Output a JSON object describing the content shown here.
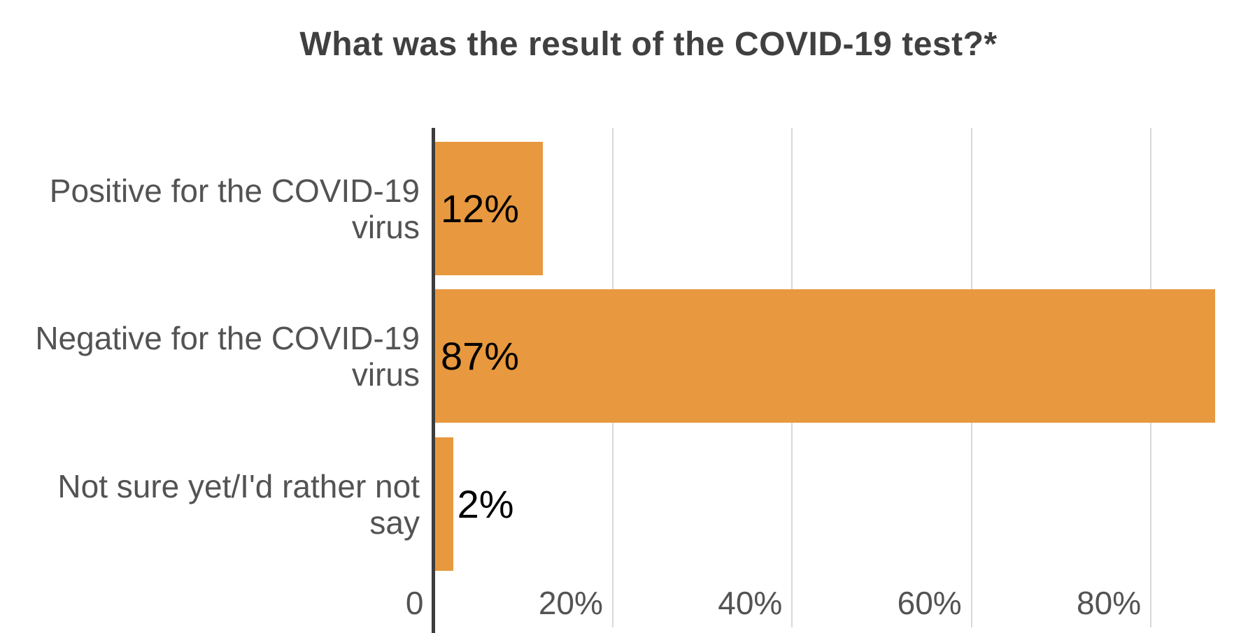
{
  "page": {
    "background": "#FFFFFF"
  },
  "chart_data": {
    "type": "bar",
    "orientation": "horizontal",
    "title": "What was the result of the COVID-19 test?*",
    "categories": [
      "Positive for the COVID-19 virus",
      "Negative for the COVID-19 virus",
      "Not sure yet/I'd rather not say"
    ],
    "category_label_lines": [
      "Positive for the COVID-19\nvirus",
      "Negative for the COVID-19\nvirus",
      "Not sure yet/I'd rather not\nsay"
    ],
    "values": [
      12,
      87,
      2
    ],
    "value_labels": [
      "12%",
      "87%",
      "2%"
    ],
    "xlabel": "",
    "ylabel": "",
    "x_axis": {
      "ticks": [
        {
          "value": 0,
          "label": "0"
        },
        {
          "value": 20,
          "label": "20%"
        },
        {
          "value": 40,
          "label": "40%"
        },
        {
          "value": 60,
          "label": "60%"
        },
        {
          "value": 80,
          "label": "80%"
        }
      ],
      "range": [
        0,
        90.8
      ],
      "unit": "percent"
    },
    "grid": true,
    "legend": false,
    "colors": {
      "bar": "#E8983E",
      "title": "#404040",
      "category_label": "#535353",
      "value_label": "#000000",
      "tick_label": "#535353",
      "axis_line": "#3D3D3D",
      "gridline": "#D9D9D9",
      "background": "#FFFFFF"
    }
  }
}
